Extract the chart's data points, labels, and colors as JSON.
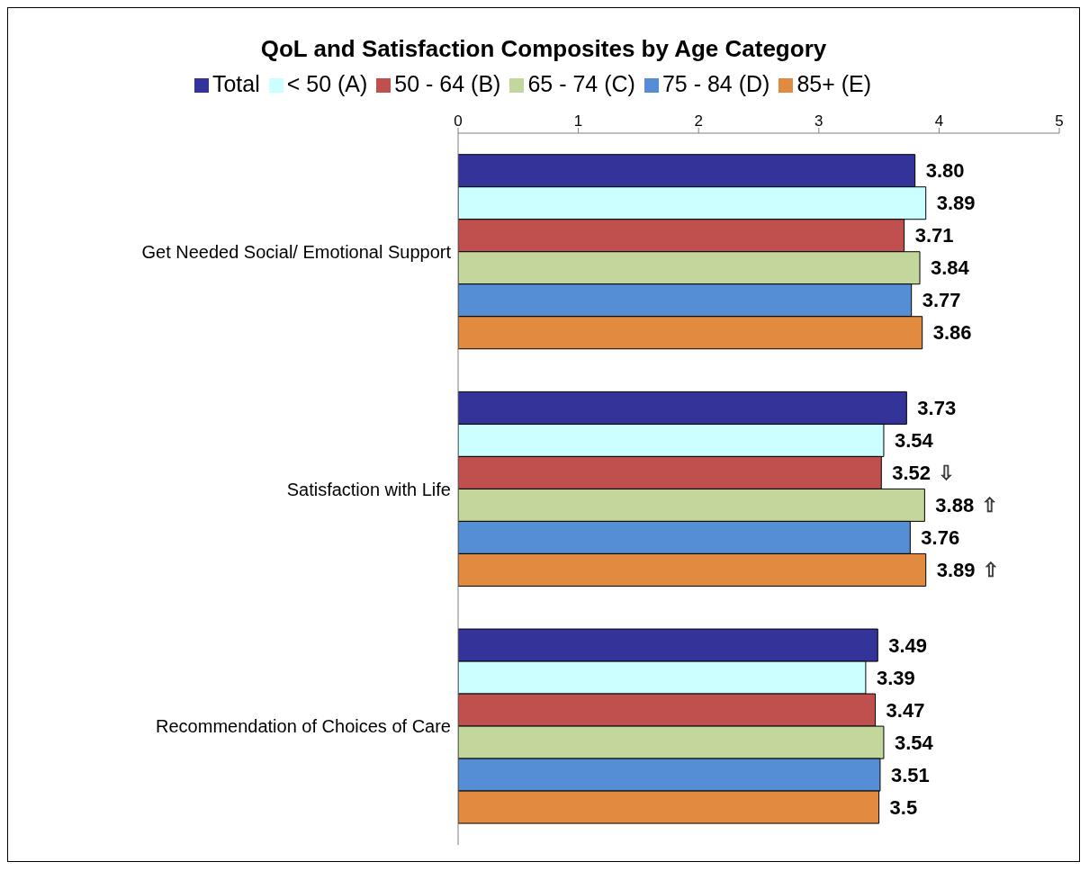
{
  "chart_data": {
    "type": "bar",
    "orientation": "horizontal",
    "title": "QoL and Satisfaction Composites by Age Category",
    "categories": [
      "Get Needed Social/ Emotional Support",
      "Satisfaction with Life",
      "Recommendation of Choices of Care"
    ],
    "series": [
      {
        "name": "Total",
        "color": "#333399",
        "values": [
          3.8,
          3.73,
          3.49
        ],
        "value_labels": [
          "3.80",
          "3.73",
          "3.49"
        ]
      },
      {
        "name": "< 50 (A)",
        "color": "#ccffff",
        "values": [
          3.89,
          3.54,
          3.39
        ],
        "value_labels": [
          "3.89",
          "3.54",
          "3.39"
        ]
      },
      {
        "name": "50 - 64 (B)",
        "color": "#c0504d",
        "values": [
          3.71,
          3.52,
          3.47
        ],
        "value_labels": [
          "3.71",
          "3.52 ⇩",
          "3.47"
        ]
      },
      {
        "name": "65 - 74 (C)",
        "color": "#c3d69b",
        "values": [
          3.84,
          3.88,
          3.54
        ],
        "value_labels": [
          "3.84",
          "3.88 ⇧",
          "3.54"
        ]
      },
      {
        "name": "75 - 84 (D)",
        "color": "#558ed5",
        "values": [
          3.77,
          3.76,
          3.51
        ],
        "value_labels": [
          "3.77",
          "3.76",
          "3.51"
        ]
      },
      {
        "name": "85+ (E)",
        "color": "#e08b40",
        "values": [
          3.86,
          3.89,
          3.5
        ],
        "value_labels": [
          "3.86",
          "3.89 ⇧",
          "3.5"
        ]
      }
    ],
    "xlim": [
      0,
      5
    ],
    "xticks": [
      0,
      1,
      2,
      3,
      4,
      5
    ],
    "grid": false,
    "legend": "top"
  }
}
